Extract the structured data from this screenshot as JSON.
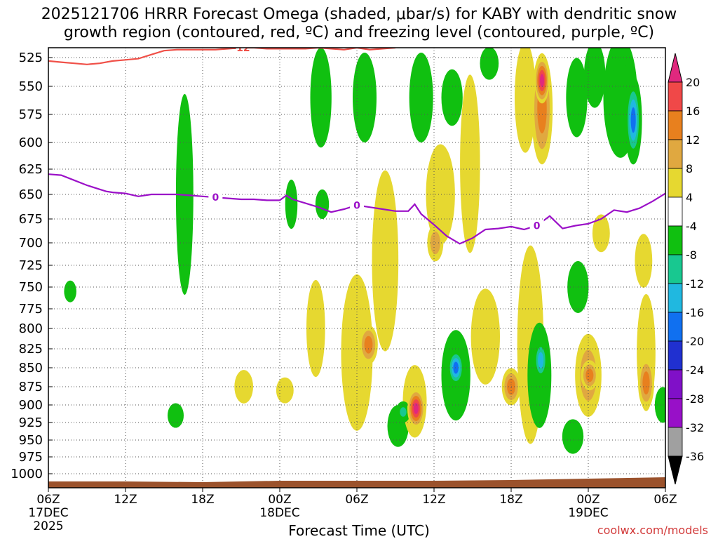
{
  "chart_data": {
    "type": "heatmap",
    "title_line1": "2025121706 HRRR Forecast Omega (shaded, μbar/s) for KABY with dendritic snow",
    "title_line2": "growth region (contoured, red, ºC) and freezing level (contoured, purple, ºC)",
    "xlabel": "Forecast Time (UTC)",
    "credit": "coolwx.com/models",
    "x_hours": [
      0,
      6,
      12,
      18,
      24,
      30,
      36,
      42,
      48
    ],
    "x_ticks": [
      {
        "hour": 0,
        "label": "06Z",
        "date": "17DEC",
        "year": "2025"
      },
      {
        "hour": 6,
        "label": "12Z"
      },
      {
        "hour": 12,
        "label": "18Z"
      },
      {
        "hour": 18,
        "label": "00Z",
        "date": "18DEC"
      },
      {
        "hour": 24,
        "label": "06Z"
      },
      {
        "hour": 30,
        "label": "12Z"
      },
      {
        "hour": 36,
        "label": "18Z"
      },
      {
        "hour": 42,
        "label": "00Z",
        "date": "19DEC"
      },
      {
        "hour": 48,
        "label": "06Z"
      }
    ],
    "y_levels": [
      525,
      550,
      575,
      600,
      625,
      650,
      675,
      700,
      725,
      750,
      775,
      800,
      825,
      850,
      875,
      900,
      925,
      950,
      975,
      1000
    ],
    "ylim": [
      515,
      1020
    ],
    "colorbar": {
      "labels": [
        "20",
        "16",
        "12",
        "8",
        "4",
        "-4",
        "-8",
        "-12",
        "-16",
        "-20",
        "-24",
        "-28",
        "-32",
        "-36"
      ],
      "bins": [
        {
          "color": "#e0287e"
        },
        {
          "color": "#f04848"
        },
        {
          "color": "#e8801e"
        },
        {
          "color": "#e0a840"
        },
        {
          "color": "#e6d830"
        },
        {
          "color": "#ffffff"
        },
        {
          "color": "#10c010"
        },
        {
          "color": "#18c890"
        },
        {
          "color": "#20b8e0"
        },
        {
          "color": "#1070f0"
        },
        {
          "color": "#2030d0"
        },
        {
          "color": "#8010c8"
        },
        {
          "color": "#9810c8"
        },
        {
          "color": "#a0a0a0"
        }
      ],
      "top_arrow_color": "#e0287e",
      "bottom_arrow_color": "#000000"
    },
    "freezing_level": {
      "label": "0",
      "color": "#9b10c8",
      "points": [
        [
          0,
          630
        ],
        [
          1,
          631
        ],
        [
          2,
          636
        ],
        [
          3,
          641
        ],
        [
          4,
          645
        ],
        [
          4.5,
          647
        ],
        [
          5,
          648
        ],
        [
          6,
          649
        ],
        [
          7,
          652
        ],
        [
          8,
          650
        ],
        [
          9,
          650
        ],
        [
          10,
          650
        ],
        [
          11,
          651
        ],
        [
          12,
          652
        ],
        [
          13,
          653
        ],
        [
          14,
          654
        ],
        [
          15,
          655
        ],
        [
          16,
          655
        ],
        [
          17,
          656
        ],
        [
          18,
          656
        ],
        [
          18.5,
          651
        ],
        [
          19,
          655
        ],
        [
          20,
          659
        ],
        [
          21,
          663
        ],
        [
          22,
          668
        ],
        [
          23,
          665
        ],
        [
          24,
          661
        ],
        [
          25,
          663
        ],
        [
          26,
          665
        ],
        [
          27,
          667
        ],
        [
          28,
          667
        ],
        [
          28.5,
          660
        ],
        [
          29,
          670
        ],
        [
          30,
          681
        ],
        [
          31,
          693
        ],
        [
          32,
          701
        ],
        [
          33,
          695
        ],
        [
          34,
          686
        ],
        [
          35,
          685
        ],
        [
          36,
          683
        ],
        [
          37,
          686
        ],
        [
          38,
          682
        ],
        [
          39,
          672
        ],
        [
          40,
          685
        ],
        [
          41,
          682
        ],
        [
          42,
          680
        ],
        [
          43,
          675
        ],
        [
          44,
          666
        ],
        [
          45,
          668
        ],
        [
          46,
          664
        ],
        [
          47,
          657
        ],
        [
          48,
          649
        ]
      ]
    },
    "dgz_contour": {
      "label": "-12",
      "color": "#f05048",
      "points": [
        [
          0,
          528
        ],
        [
          1,
          529
        ],
        [
          2,
          530
        ],
        [
          3,
          531
        ],
        [
          4,
          530
        ],
        [
          5,
          528
        ],
        [
          6,
          527
        ],
        [
          7,
          526
        ],
        [
          8,
          522
        ],
        [
          9,
          518
        ],
        [
          10,
          517
        ],
        [
          11,
          517
        ],
        [
          12,
          517
        ],
        [
          13,
          517
        ],
        [
          14,
          516
        ],
        [
          15,
          515
        ],
        [
          16,
          515
        ],
        [
          17,
          516
        ],
        [
          18,
          516
        ],
        [
          19,
          516
        ],
        [
          20,
          516
        ],
        [
          21,
          515
        ],
        [
          22,
          516
        ],
        [
          23,
          517
        ],
        [
          24,
          515
        ],
        [
          25,
          517
        ],
        [
          26,
          516
        ],
        [
          27,
          515
        ]
      ]
    },
    "terrain": {
      "color": "#9b522c",
      "points": [
        [
          0,
          1011
        ],
        [
          6,
          1011
        ],
        [
          12,
          1012
        ],
        [
          18,
          1010
        ],
        [
          24,
          1010
        ],
        [
          30,
          1010
        ],
        [
          36,
          1009
        ],
        [
          42,
          1007
        ],
        [
          48,
          1005
        ]
      ]
    },
    "omega_blobs": [
      {
        "h": 1.7,
        "p": 755,
        "w": 0.15,
        "d": 25,
        "v": -6
      },
      {
        "h": 10.6,
        "p": 650,
        "w": 0.35,
        "d": 200,
        "v": -6
      },
      {
        "h": 10.6,
        "p": 700,
        "w": 0.15,
        "d": 80,
        "v": -10
      },
      {
        "h": 9.9,
        "p": 915,
        "w": 0.3,
        "d": 35,
        "v": -6
      },
      {
        "h": 15.2,
        "p": 875,
        "w": 0.4,
        "d": 45,
        "v": 5
      },
      {
        "h": 18.4,
        "p": 880,
        "w": 0.35,
        "d": 35,
        "v": 5
      },
      {
        "h": 18.9,
        "p": 660,
        "w": 0.15,
        "d": 50,
        "v": -6
      },
      {
        "h": 20.8,
        "p": 800,
        "w": 0.4,
        "d": 120,
        "v": 5
      },
      {
        "h": 21.2,
        "p": 560,
        "w": 0.5,
        "d": 90,
        "v": -6
      },
      {
        "h": 21.3,
        "p": 660,
        "w": 0.2,
        "d": 30,
        "v": -5
      },
      {
        "h": 24.6,
        "p": 560,
        "w": 0.6,
        "d": 80,
        "v": -6
      },
      {
        "h": 24.0,
        "p": 830,
        "w": 0.9,
        "d": 200,
        "v": 5
      },
      {
        "h": 24.9,
        "p": 820,
        "w": 0.4,
        "d": 50,
        "v": 12
      },
      {
        "h": 26.2,
        "p": 720,
        "w": 0.7,
        "d": 200,
        "v": 5
      },
      {
        "h": 27.2,
        "p": 930,
        "w": 0.5,
        "d": 60,
        "v": -6
      },
      {
        "h": 27.6,
        "p": 910,
        "w": 0.25,
        "d": 30,
        "v": -12
      },
      {
        "h": 28.5,
        "p": 895,
        "w": 0.6,
        "d": 100,
        "v": 6
      },
      {
        "h": 28.6,
        "p": 905,
        "w": 0.35,
        "d": 55,
        "v": 20
      },
      {
        "h": 29.0,
        "p": 560,
        "w": 0.6,
        "d": 80,
        "v": -8
      },
      {
        "h": 30.5,
        "p": 650,
        "w": 0.8,
        "d": 100,
        "v": 6
      },
      {
        "h": 30.1,
        "p": 700,
        "w": 0.3,
        "d": 40,
        "v": 11
      },
      {
        "h": 31.4,
        "p": 560,
        "w": 0.5,
        "d": 50,
        "v": -10
      },
      {
        "h": 32.8,
        "p": 620,
        "w": 0.45,
        "d": 170,
        "v": 7
      },
      {
        "h": 31.7,
        "p": 860,
        "w": 0.8,
        "d": 120,
        "v": -8
      },
      {
        "h": 31.7,
        "p": 850,
        "w": 0.4,
        "d": 55,
        "v": -20
      },
      {
        "h": 34.3,
        "p": 530,
        "w": 0.4,
        "d": 30,
        "v": -6
      },
      {
        "h": 34.0,
        "p": 810,
        "w": 0.8,
        "d": 120,
        "v": 5
      },
      {
        "h": 36.0,
        "p": 875,
        "w": 0.4,
        "d": 50,
        "v": 12
      },
      {
        "h": 37.1,
        "p": 560,
        "w": 0.5,
        "d": 100,
        "v": 5
      },
      {
        "h": 37.5,
        "p": 820,
        "w": 0.7,
        "d": 250,
        "v": 5
      },
      {
        "h": 38.4,
        "p": 570,
        "w": 0.5,
        "d": 100,
        "v": 14
      },
      {
        "h": 38.4,
        "p": 545,
        "w": 0.25,
        "d": 40,
        "v": 20
      },
      {
        "h": 38.2,
        "p": 860,
        "w": 0.6,
        "d": 140,
        "v": -10
      },
      {
        "h": 38.3,
        "p": 840,
        "w": 0.3,
        "d": 60,
        "v": -18
      },
      {
        "h": 42.0,
        "p": 860,
        "w": 0.7,
        "d": 110,
        "v": 8
      },
      {
        "h": 42.1,
        "p": 860,
        "w": 0.35,
        "d": 40,
        "v": 14
      },
      {
        "h": 40.8,
        "p": 945,
        "w": 0.5,
        "d": 50,
        "v": -10
      },
      {
        "h": 41.2,
        "p": 750,
        "w": 0.5,
        "d": 60,
        "v": -6
      },
      {
        "h": 41.1,
        "p": 560,
        "w": 0.5,
        "d": 70,
        "v": -6
      },
      {
        "h": 44.5,
        "p": 560,
        "w": 1.0,
        "d": 110,
        "v": -10
      },
      {
        "h": 45.5,
        "p": 580,
        "w": 0.35,
        "d": 80,
        "v": -20
      },
      {
        "h": 42.5,
        "p": 540,
        "w": 0.5,
        "d": 60,
        "v": -6
      },
      {
        "h": 46.5,
        "p": 830,
        "w": 0.4,
        "d": 150,
        "v": 5
      },
      {
        "h": 46.5,
        "p": 870,
        "w": 0.3,
        "d": 70,
        "v": 12
      },
      {
        "h": 46.3,
        "p": 720,
        "w": 0.35,
        "d": 60,
        "v": 5
      },
      {
        "h": 47.8,
        "p": 900,
        "w": 0.3,
        "d": 50,
        "v": -6
      },
      {
        "h": 43.0,
        "p": 690,
        "w": 0.35,
        "d": 40,
        "v": 5
      }
    ]
  }
}
